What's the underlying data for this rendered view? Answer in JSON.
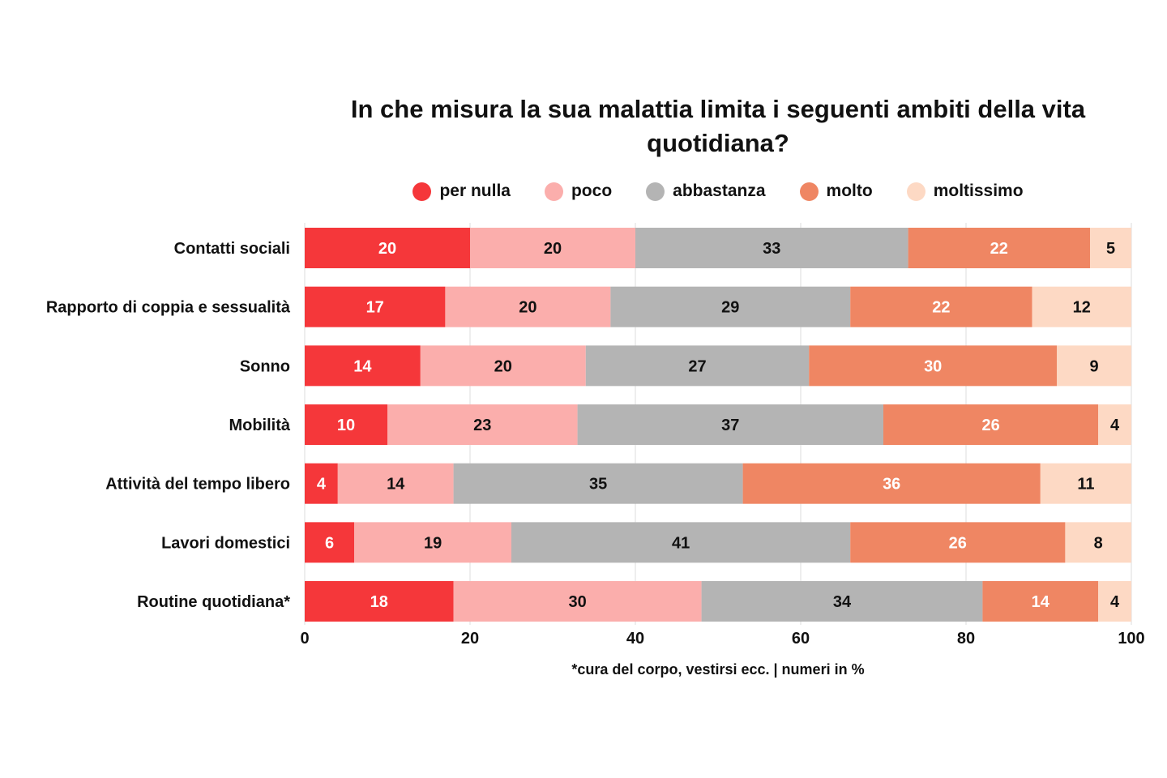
{
  "chart_data": {
    "type": "bar",
    "orientation": "horizontal",
    "stacked": true,
    "title": "In che misura la sua malattia limita i seguenti ambiti della vita quotidiana?",
    "categories": [
      "Contatti sociali",
      "Rapporto di coppia e sessualità",
      "Sonno",
      "Mobilità",
      "Attività del tempo libero",
      "Lavori domestici",
      "Routine quotidiana*"
    ],
    "series": [
      {
        "name": "per nulla",
        "color": "#f5373a",
        "label_color": "#ffffff",
        "values": [
          20,
          17,
          14,
          10,
          4,
          6,
          18
        ]
      },
      {
        "name": "poco",
        "color": "#fbaeac",
        "label_color": "#111111",
        "values": [
          20,
          20,
          20,
          23,
          14,
          19,
          30
        ]
      },
      {
        "name": "abbastanza",
        "color": "#b4b4b4",
        "label_color": "#111111",
        "values": [
          33,
          29,
          27,
          37,
          35,
          41,
          34
        ]
      },
      {
        "name": "molto",
        "color": "#ef8663",
        "label_color": "#ffffff",
        "values": [
          22,
          22,
          30,
          26,
          36,
          26,
          14
        ]
      },
      {
        "name": "moltissimo",
        "color": "#fdd9c4",
        "label_color": "#111111",
        "values": [
          5,
          12,
          9,
          4,
          11,
          8,
          4
        ]
      }
    ],
    "xlim": [
      0,
      100
    ],
    "xticks": [
      "0",
      "20",
      "40",
      "60",
      "80",
      "100"
    ],
    "grid": true,
    "legend_position": "top",
    "note": "*cura del corpo, vestirsi ecc. | numeri in %"
  }
}
